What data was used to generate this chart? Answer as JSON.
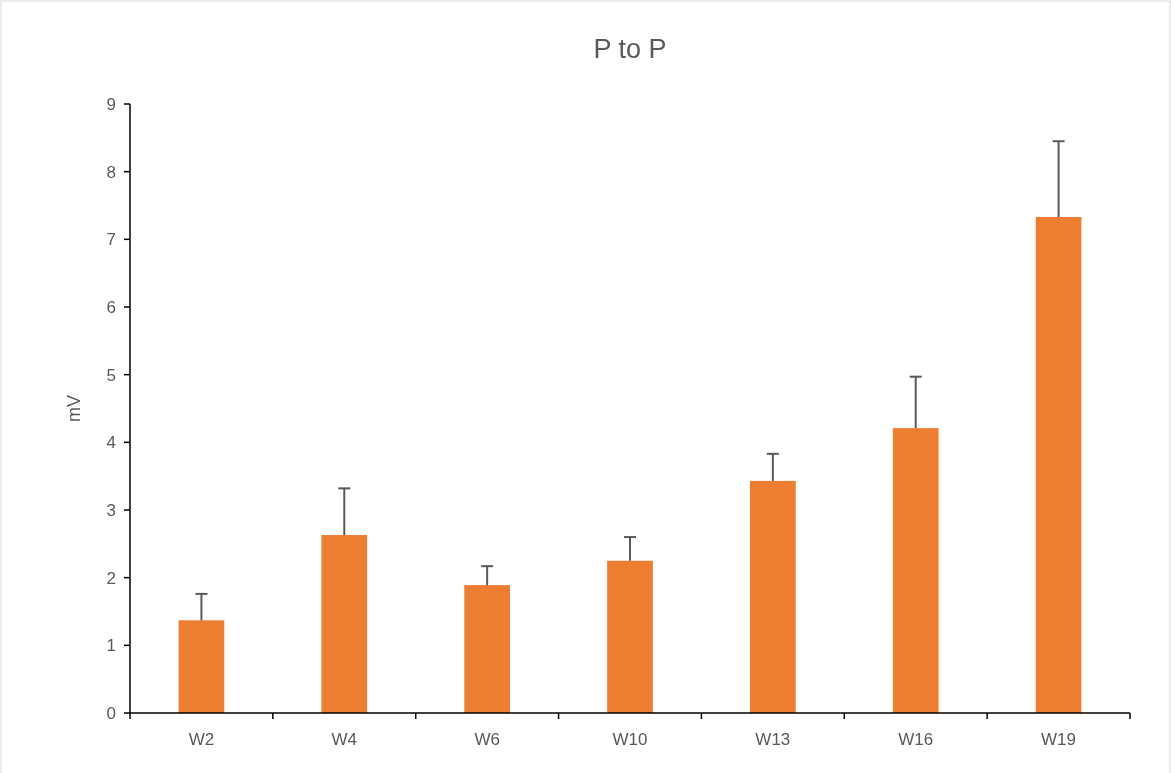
{
  "chart_data": {
    "type": "bar",
    "title": "P to P",
    "ylabel": "mV",
    "categories": [
      "W2",
      "W4",
      "W6",
      "W10",
      "W13",
      "W16",
      "W19"
    ],
    "values": [
      1.37,
      2.63,
      1.89,
      2.25,
      3.43,
      4.21,
      7.33
    ],
    "errors": [
      [
        1.37,
        1.76
      ],
      [
        2.63,
        3.32
      ],
      [
        1.89,
        2.17
      ],
      [
        2.25,
        2.6
      ],
      [
        3.43,
        3.83
      ],
      [
        4.21,
        4.97
      ],
      [
        7.33,
        8.45
      ]
    ],
    "color": "#ed7d31",
    "ylim": [
      0,
      9
    ],
    "yticks": [
      0,
      1,
      2,
      3,
      4,
      5,
      6,
      7,
      8,
      9
    ],
    "grid": false
  }
}
